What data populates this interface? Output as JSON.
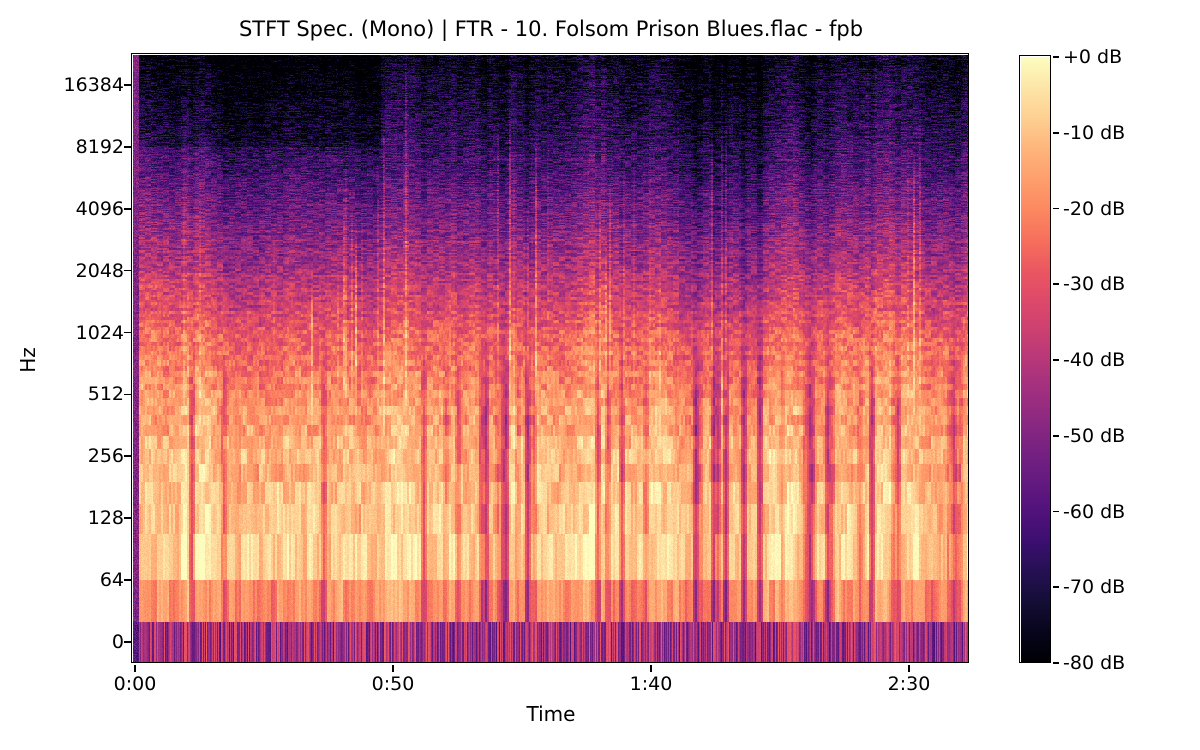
{
  "window": {
    "background": "#ffffff"
  },
  "chart_data": {
    "type": "heatmap",
    "subtype": "stft_spectrogram_log_frequency",
    "title": "STFT Spec. (Mono) | FTR - 10. Folsom Prison Blues.flac - fpb",
    "xlabel": "Time",
    "ylabel": "Hz",
    "x_ticks": [
      {
        "label": "0:00",
        "seconds": 0
      },
      {
        "label": "0:50",
        "seconds": 50
      },
      {
        "label": "1:40",
        "seconds": 100
      },
      {
        "label": "2:30",
        "seconds": 150
      }
    ],
    "duration_seconds": 161.6,
    "y_ticks": [
      {
        "label": "16384",
        "hz": 16384
      },
      {
        "label": "8192",
        "hz": 8192
      },
      {
        "label": "4096",
        "hz": 4096
      },
      {
        "label": "2048",
        "hz": 2048
      },
      {
        "label": "1024",
        "hz": 1024
      },
      {
        "label": "512",
        "hz": 512
      },
      {
        "label": "256",
        "hz": 256
      },
      {
        "label": "128",
        "hz": 128
      },
      {
        "label": "64",
        "hz": 64
      },
      {
        "label": "0",
        "hz": 0
      }
    ],
    "freq_axis": {
      "scale": "log",
      "top_hz": 22050,
      "linear_below_hz": 64,
      "fft_bin_hz": 43.066
    },
    "colorbar": {
      "min_db": -80,
      "max_db": 0,
      "ticks": [
        {
          "label": "+0 dB",
          "db": 0
        },
        {
          "label": "-10 dB",
          "db": -10
        },
        {
          "label": "-20 dB",
          "db": -20
        },
        {
          "label": "-30 dB",
          "db": -30
        },
        {
          "label": "-40 dB",
          "db": -40
        },
        {
          "label": "-50 dB",
          "db": -50
        },
        {
          "label": "-60 dB",
          "db": -60
        },
        {
          "label": "-70 dB",
          "db": -70
        },
        {
          "label": "-80 dB",
          "db": -80
        }
      ]
    },
    "colormap": {
      "name": "magma",
      "stops": [
        "#000004",
        "#07051b",
        "#140e36",
        "#251053",
        "#3b0f70",
        "#51127c",
        "#641a80",
        "#762181",
        "#8c2981",
        "#a12f7f",
        "#b73779",
        "#cc4071",
        "#de4968",
        "#eb5861",
        "#f7705c",
        "#fc8961",
        "#fe9f6d",
        "#feb57c",
        "#fecf92",
        "#fde5a7",
        "#fcfdbf"
      ]
    },
    "spectral_profile_db": [
      [
        21.5,
        -24
      ],
      [
        43,
        -17
      ],
      [
        86,
        -8
      ],
      [
        129,
        -9
      ],
      [
        172,
        -11
      ],
      [
        258,
        -11.5
      ],
      [
        516,
        -17
      ],
      [
        900,
        -24
      ],
      [
        1100,
        -28
      ],
      [
        2066,
        -40
      ],
      [
        4096,
        -52
      ],
      [
        8192,
        -64
      ],
      [
        16384,
        -72
      ],
      [
        22050,
        -76
      ]
    ],
    "dc_band_db": {
      "mean": -44,
      "variation": 15
    },
    "notes": "Energy concentrated 40-300 Hz (-5 to -15 dB); vertical onset streaks reach 8-20 kHz; quiet above 8 kHz before 0:48"
  }
}
